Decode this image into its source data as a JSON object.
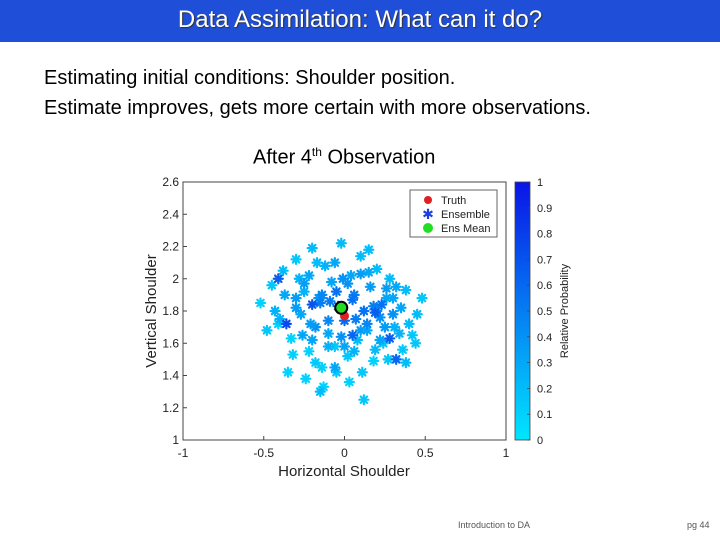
{
  "slide": {
    "title": "Data Assimilation: What can it do?",
    "line1": "Estimating initial conditions: Shoulder position.",
    "line2": "Estimate improves, gets more certain with more observations.",
    "footer_left": "Introduction to DA",
    "footer_right": "pg 44"
  },
  "colors": {
    "title_bar": "#1f4fd8",
    "truth": "#e02020",
    "ens_mean": "#22dd22",
    "ensemble_legend": "#1a3fe0",
    "colormap_low": "#00e6ff",
    "colormap_high": "#0a14e6"
  },
  "chart_data": {
    "type": "scatter",
    "title_prefix": "After 4",
    "title_sup": "th",
    "title_suffix": " Observation",
    "xlabel": "Horizontal Shoulder",
    "ylabel": "Vertical Shoulder",
    "xlim": [
      -1,
      1
    ],
    "ylim": [
      1,
      2.6
    ],
    "xticks": [
      -1,
      -0.5,
      0,
      0.5,
      1
    ],
    "xtick_labels": [
      "-1",
      "-0.5",
      "0",
      "0.5",
      "1"
    ],
    "yticks": [
      1,
      1.2,
      1.4,
      1.6,
      1.8,
      2,
      2.2,
      2.4,
      2.6
    ],
    "ytick_labels": [
      "1",
      "1.2",
      "1.4",
      "1.6",
      "1.8",
      "2",
      "2.2",
      "2.4",
      "2.6"
    ],
    "legend": [
      "Truth",
      "Ensemble",
      "Ens Mean"
    ],
    "legend_position": "top-right",
    "colorbar": {
      "label": "Relative Probability",
      "ticks": [
        0,
        0.1,
        0.2,
        0.3,
        0.4,
        0.5,
        0.6,
        0.7,
        0.8,
        0.9,
        1
      ],
      "tick_labels": [
        "0",
        "0.1",
        "0.2",
        "0.3",
        "0.4",
        "0.5",
        "0.6",
        "0.7",
        "0.8",
        "0.9",
        "1"
      ]
    },
    "truth": {
      "x": 0.0,
      "y": 1.77
    },
    "ens_mean": {
      "x": -0.02,
      "y": 1.82
    },
    "ensemble": {
      "x": [
        -0.52,
        -0.45,
        -0.41,
        -0.38,
        -0.33,
        -0.3,
        -0.27,
        -0.25,
        -0.22,
        -0.2,
        -0.18,
        -0.16,
        -0.14,
        -0.12,
        -0.1,
        -0.08,
        -0.06,
        -0.04,
        -0.02,
        0.0,
        0.02,
        0.04,
        0.06,
        0.08,
        0.1,
        0.12,
        0.14,
        0.16,
        0.18,
        0.2,
        0.22,
        0.24,
        0.26,
        0.28,
        0.31,
        0.35,
        0.38,
        0.42,
        0.45,
        0.48,
        -0.48,
        -0.43,
        -0.37,
        -0.32,
        -0.28,
        -0.24,
        -0.21,
        -0.17,
        -0.13,
        -0.09,
        -0.05,
        -0.01,
        0.03,
        0.07,
        0.11,
        0.15,
        0.19,
        0.23,
        0.27,
        0.32,
        0.36,
        0.4,
        0.44,
        -0.4,
        -0.35,
        -0.3,
        -0.26,
        -0.22,
        -0.18,
        -0.14,
        -0.1,
        -0.06,
        -0.02,
        0.02,
        0.06,
        0.1,
        0.14,
        0.18,
        0.22,
        0.26,
        0.3,
        0.34,
        0.38,
        -0.3,
        -0.25,
        -0.2,
        -0.15,
        -0.1,
        -0.05,
        0.0,
        0.05,
        0.1,
        0.15,
        0.2,
        0.25,
        0.3,
        -0.41,
        -0.2,
        0.19,
        0.28,
        0.05,
        -0.36,
        0.32,
        -0.15,
        0.12,
        -0.06
      ],
      "y": [
        1.85,
        1.96,
        1.72,
        2.05,
        1.63,
        2.12,
        1.78,
        1.92,
        1.55,
        2.19,
        1.7,
        1.88,
        1.45,
        2.08,
        1.66,
        1.98,
        1.58,
        1.83,
        2.22,
        1.74,
        1.52,
        2.02,
        1.9,
        1.62,
        2.14,
        1.8,
        1.68,
        1.95,
        1.49,
        2.06,
        1.76,
        1.6,
        1.88,
        2.0,
        1.7,
        1.82,
        1.93,
        1.65,
        1.78,
        1.88,
        1.68,
        1.8,
        1.9,
        1.53,
        2.0,
        1.38,
        1.72,
        2.1,
        1.33,
        1.86,
        1.42,
        2.0,
        1.36,
        1.75,
        1.42,
        2.18,
        1.56,
        1.84,
        1.5,
        1.95,
        1.56,
        1.72,
        1.6,
        1.75,
        1.42,
        1.88,
        1.65,
        2.02,
        1.48,
        1.9,
        1.58,
        2.1,
        1.64,
        1.97,
        1.55,
        2.03,
        1.72,
        1.83,
        1.62,
        1.94,
        1.78,
        1.66,
        1.48,
        1.82,
        1.97,
        1.62,
        1.85,
        1.74,
        1.92,
        1.58,
        1.87,
        1.68,
        2.04,
        1.8,
        1.7,
        1.88,
        2.0,
        1.84,
        1.79,
        1.63,
        1.65,
        1.72,
        1.5,
        1.3,
        1.25,
        1.45
      ],
      "prob": [
        0.1,
        0.15,
        0.1,
        0.2,
        0.1,
        0.15,
        0.3,
        0.25,
        0.1,
        0.2,
        0.4,
        0.35,
        0.1,
        0.25,
        0.3,
        0.3,
        0.15,
        0.55,
        0.2,
        0.6,
        0.15,
        0.3,
        0.5,
        0.2,
        0.2,
        0.55,
        0.3,
        0.35,
        0.1,
        0.2,
        0.4,
        0.15,
        0.3,
        0.2,
        0.25,
        0.3,
        0.2,
        0.15,
        0.2,
        0.15,
        0.15,
        0.25,
        0.3,
        0.1,
        0.25,
        0.1,
        0.35,
        0.2,
        0.1,
        0.5,
        0.15,
        0.4,
        0.1,
        0.5,
        0.15,
        0.2,
        0.2,
        0.55,
        0.15,
        0.3,
        0.15,
        0.2,
        0.15,
        0.25,
        0.1,
        0.35,
        0.3,
        0.3,
        0.15,
        0.45,
        0.25,
        0.3,
        0.4,
        0.4,
        0.25,
        0.35,
        0.45,
        0.5,
        0.3,
        0.35,
        0.4,
        0.25,
        0.2,
        0.35,
        0.35,
        0.3,
        0.5,
        0.45,
        0.55,
        0.3,
        0.55,
        0.35,
        0.3,
        0.45,
        0.35,
        0.3,
        0.65,
        0.7,
        0.65,
        0.65,
        0.6,
        0.75,
        0.6,
        0.2,
        0.15,
        0.3
      ]
    }
  }
}
